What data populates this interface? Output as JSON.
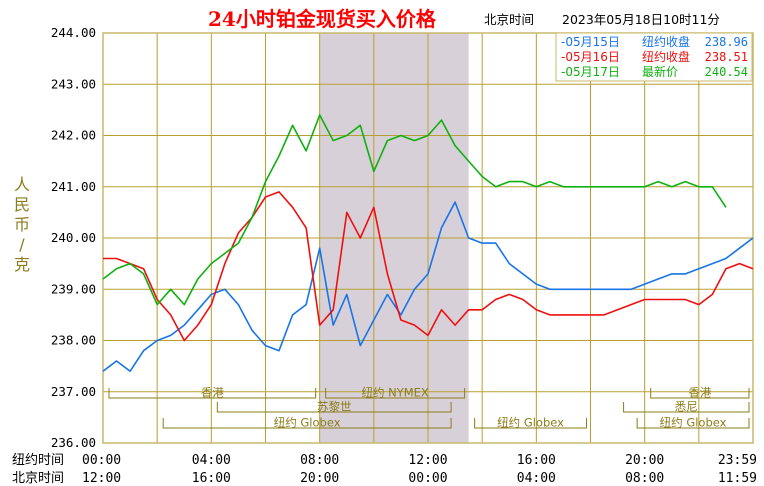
{
  "colors": {
    "background": "#ffffff",
    "frame": "#c8b86a",
    "grid": "#b8a030",
    "shade": "#d8d0d8",
    "title": "#ff0000",
    "axis_text": "#000000",
    "ylabel_text": "#8b7d1a",
    "blue": "#1874e8",
    "red": "#ee1010",
    "green": "#10b010",
    "session_text": "#8b7d1a"
  },
  "header": {
    "title": "24小时铂金现货买入价格",
    "location": "北京时间",
    "timestamp": "2023年05月18日10时11分"
  },
  "chart_data": {
    "type": "line",
    "title": "24小时铂金现货买入价格",
    "ylabel": "人民币/克",
    "ylim": [
      236,
      244
    ],
    "yticks": [
      "244.00",
      "243.00",
      "242.00",
      "241.00",
      "240.00",
      "239.00",
      "238.00",
      "237.00",
      "236.00"
    ],
    "x_rows": [
      {
        "label": "纽约时间",
        "ticks": [
          "00:00",
          "04:00",
          "08:00",
          "12:00",
          "16:00",
          "20:00",
          "23:59"
        ]
      },
      {
        "label": "北京时间",
        "ticks": [
          "12:00",
          "16:00",
          "20:00",
          "00:00",
          "04:00",
          "08:00",
          "11:59"
        ]
      }
    ],
    "shaded_region": [
      8.0,
      13.5
    ],
    "grid": true,
    "legend": "top-right",
    "sessions": [
      {
        "name": "香港",
        "start": 0.0,
        "end": 8.0
      },
      {
        "name": "苏黎世",
        "start": 4.0,
        "end": 13.0
      },
      {
        "name": "纽约 Globex",
        "start": 2.0,
        "end": 13.0
      },
      {
        "name": "纽约 NYMEX",
        "start": 8.0,
        "end": 13.5
      },
      {
        "name": "纽约 Globex",
        "start": 13.5,
        "end": 18.0
      },
      {
        "name": "香港",
        "start": 20.0,
        "end": 24.0
      },
      {
        "name": "悉尼",
        "start": 19.0,
        "end": 24.0
      },
      {
        "name": "纽约 Globex",
        "start": 19.5,
        "end": 24.0
      }
    ],
    "series": [
      {
        "name": "05月15日",
        "legend_label": "纽约收盘",
        "legend_value": "238.96",
        "color": "#1874e8",
        "x": [
          0,
          0.5,
          1,
          1.5,
          2,
          2.5,
          3,
          3.5,
          4,
          4.5,
          5,
          5.5,
          6,
          6.5,
          7,
          7.5,
          8,
          8.5,
          9,
          9.5,
          10,
          10.5,
          11,
          11.5,
          12,
          12.5,
          13,
          13.5,
          14,
          14.5,
          15,
          15.5,
          16,
          16.5,
          17,
          17.5,
          18,
          18.5,
          19,
          19.5,
          20,
          20.5,
          21,
          21.5,
          22,
          22.5,
          23,
          23.5,
          24
        ],
        "y": [
          237.4,
          237.6,
          237.4,
          237.8,
          238.0,
          238.1,
          238.3,
          238.6,
          238.9,
          239.0,
          238.7,
          238.2,
          237.9,
          237.8,
          238.5,
          238.7,
          239.8,
          238.3,
          238.9,
          237.9,
          238.4,
          238.9,
          238.5,
          239.0,
          239.3,
          240.2,
          240.7,
          240.0,
          239.9,
          239.9,
          239.5,
          239.3,
          239.1,
          239.0,
          239.0,
          239.0,
          239.0,
          239.0,
          239.0,
          239.0,
          239.1,
          239.2,
          239.3,
          239.3,
          239.4,
          239.5,
          239.6,
          239.8,
          240.0
        ]
      },
      {
        "name": "05月16日",
        "legend_label": "纽约收盘",
        "legend_value": "238.51",
        "color": "#ee1010",
        "x": [
          0,
          0.5,
          1,
          1.5,
          2,
          2.5,
          3,
          3.5,
          4,
          4.5,
          5,
          5.5,
          6,
          6.5,
          7,
          7.5,
          8,
          8.5,
          9,
          9.5,
          10,
          10.5,
          11,
          11.5,
          12,
          12.5,
          13,
          13.5,
          14,
          14.5,
          15,
          15.5,
          16,
          16.5,
          17,
          17.5,
          18,
          18.5,
          19,
          19.5,
          20,
          20.5,
          21,
          21.5,
          22,
          22.5,
          23,
          23.5,
          24
        ],
        "y": [
          239.6,
          239.6,
          239.5,
          239.4,
          238.8,
          238.5,
          238.0,
          238.3,
          238.7,
          239.5,
          240.1,
          240.4,
          240.8,
          240.9,
          240.6,
          240.2,
          238.3,
          238.6,
          240.5,
          240.0,
          240.6,
          239.3,
          238.4,
          238.3,
          238.1,
          238.6,
          238.3,
          238.6,
          238.6,
          238.8,
          238.9,
          238.8,
          238.6,
          238.5,
          238.5,
          238.5,
          238.5,
          238.5,
          238.6,
          238.7,
          238.8,
          238.8,
          238.8,
          238.8,
          238.7,
          238.9,
          239.4,
          239.5,
          239.4
        ]
      },
      {
        "name": "05月17日",
        "legend_label": "最新价",
        "legend_value": "240.54",
        "color": "#10b010",
        "x": [
          0,
          0.5,
          1,
          1.5,
          2,
          2.5,
          3,
          3.5,
          4,
          4.5,
          5,
          5.5,
          6,
          6.5,
          7,
          7.5,
          8,
          8.5,
          9,
          9.5,
          10,
          10.5,
          11,
          11.5,
          12,
          12.5,
          13,
          13.5,
          14,
          14.5,
          15,
          15.5,
          16,
          16.5,
          17,
          17.5,
          18,
          18.5,
          19,
          19.5,
          20,
          20.5,
          21,
          21.5,
          22,
          22.5,
          23
        ],
        "y": [
          239.2,
          239.4,
          239.5,
          239.3,
          238.7,
          239.0,
          238.7,
          239.2,
          239.5,
          239.7,
          239.9,
          240.4,
          241.1,
          241.6,
          242.2,
          241.7,
          242.4,
          241.9,
          242.0,
          242.2,
          241.3,
          241.9,
          242.0,
          241.9,
          242.0,
          242.3,
          241.8,
          241.5,
          241.2,
          241.0,
          241.1,
          241.1,
          241.0,
          241.1,
          241.0,
          241.0,
          241.0,
          241.0,
          241.0,
          241.0,
          241.0,
          241.1,
          241.0,
          241.1,
          241.0,
          241.0,
          240.6
        ]
      }
    ]
  }
}
